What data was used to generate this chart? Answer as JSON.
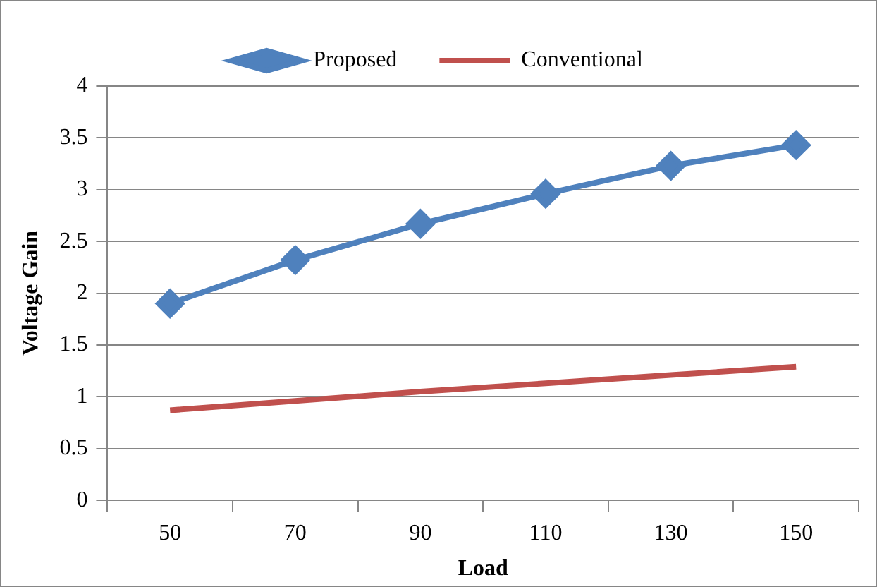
{
  "chart_data": {
    "type": "line",
    "xlabel": "Load",
    "ylabel": "Voltage Gain",
    "categories": [
      "50",
      "70",
      "90",
      "110",
      "130",
      "150"
    ],
    "series": [
      {
        "name": "Proposed",
        "color": "#4f81bd",
        "marker": "diamond",
        "values": [
          1.9,
          2.32,
          2.67,
          2.96,
          3.23,
          3.43
        ]
      },
      {
        "name": "Conventional",
        "color": "#c0504d",
        "marker": "none",
        "values": [
          0.87,
          0.96,
          1.05,
          1.13,
          1.21,
          1.29
        ]
      }
    ],
    "ylim": [
      0,
      4
    ],
    "yticks": [
      0,
      0.5,
      1,
      1.5,
      2,
      2.5,
      3,
      3.5,
      4
    ],
    "grid": "y",
    "legend": "top"
  }
}
